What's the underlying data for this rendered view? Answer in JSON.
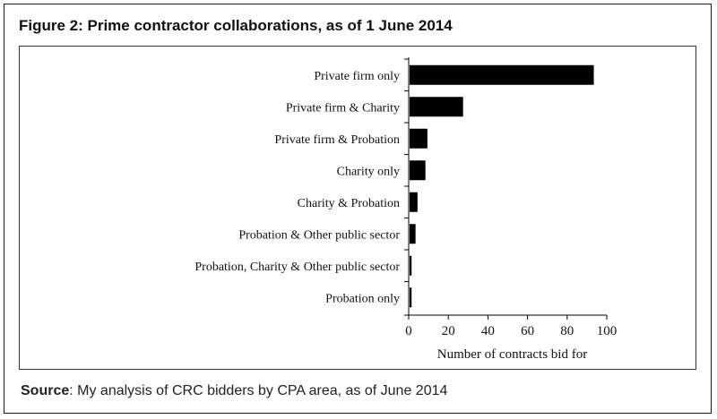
{
  "figure": {
    "title": "Figure 2: Prime contractor collaborations, as of 1 June 2014",
    "source_label": "Source",
    "source_text": ": My analysis of CRC bidders by CPA area, as of June 2014"
  },
  "chart_data": {
    "type": "bar",
    "orientation": "horizontal",
    "categories": [
      "Private firm only",
      "Private firm & Charity",
      "Private firm & Probation",
      "Charity only",
      "Charity & Probation",
      "Probation & Other public sector",
      "Probation, Charity & Other public sector",
      "Probation only"
    ],
    "values": [
      93,
      27,
      9,
      8,
      4,
      3,
      1,
      1
    ],
    "xlabel": "Number of contracts bid for",
    "ylabel": "",
    "xlim": [
      0,
      100
    ],
    "xticks": [
      0,
      20,
      40,
      60,
      80,
      100
    ],
    "bar_color": "#000000",
    "grid": false
  }
}
